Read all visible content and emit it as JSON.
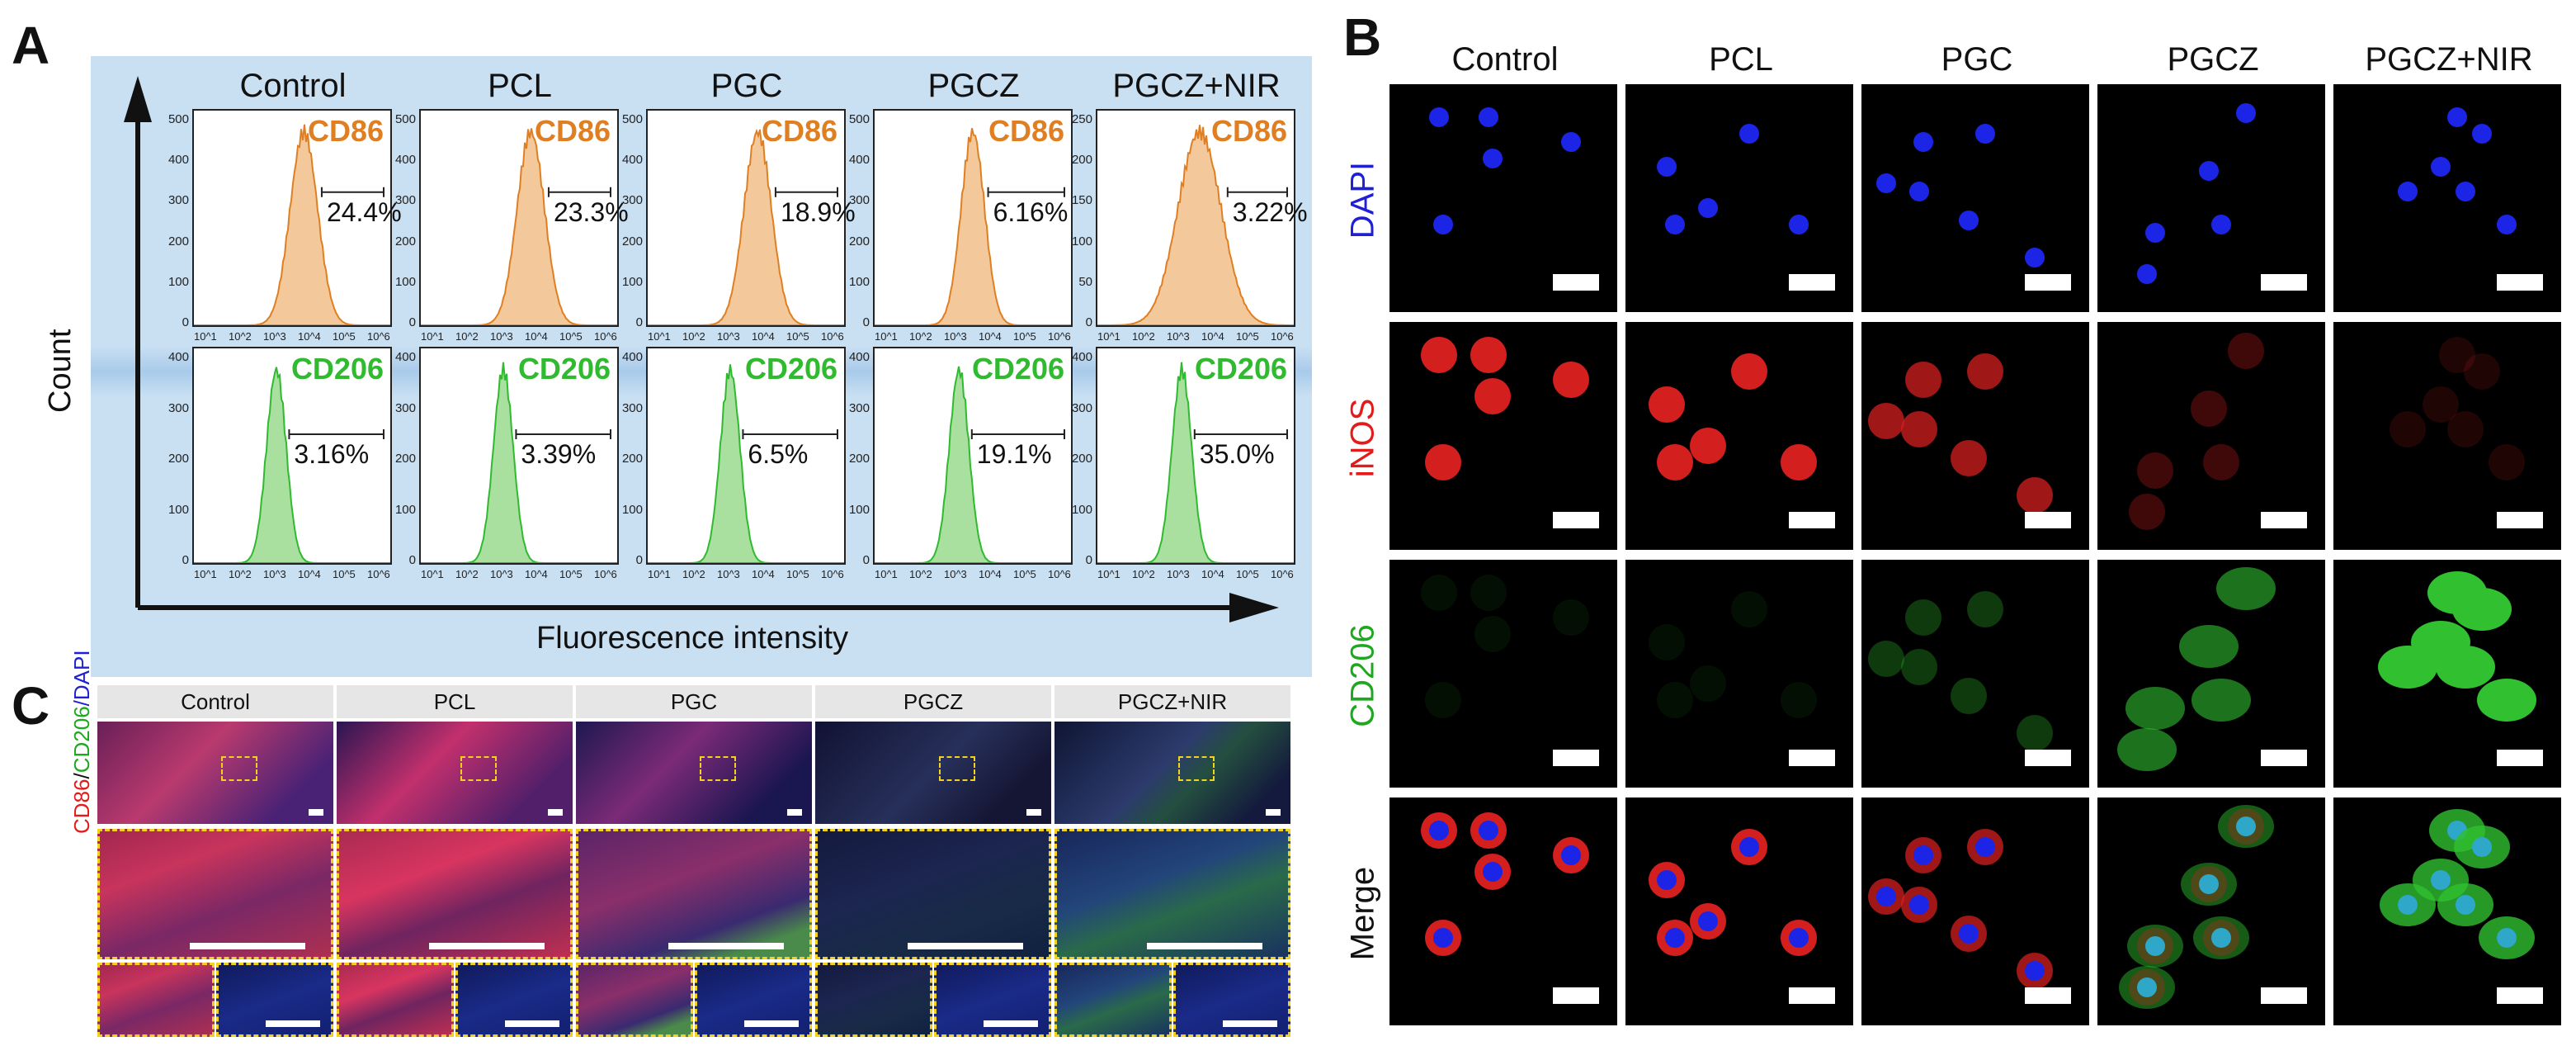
{
  "panel_letters": {
    "a": "A",
    "b": "B",
    "c": "C"
  },
  "panel_a": {
    "columns": [
      "Control",
      "PCL",
      "PGC",
      "PGCZ",
      "PGCZ+NIR"
    ],
    "y_axis_label": "Count",
    "x_axis_label": "Fluorescence intensity",
    "x_tick_labels": [
      "10^1",
      "10^2",
      "10^3",
      "10^4",
      "10^5",
      "10^6"
    ],
    "cd86": {
      "marker": "CD86",
      "color": "#e07f22",
      "percentages": [
        "24.4%",
        "23.3%",
        "18.9%",
        "6.16%",
        "3.22%"
      ],
      "y_ticks": [
        [
          "500",
          "400",
          "300",
          "200",
          "100",
          "0"
        ],
        [
          "500",
          "400",
          "300",
          "200",
          "100",
          "0"
        ],
        [
          "500",
          "400",
          "300",
          "200",
          "100",
          "0"
        ],
        [
          "500",
          "400",
          "300",
          "200",
          "100",
          "0"
        ],
        [
          "250",
          "200",
          "150",
          "100",
          "50",
          "0"
        ]
      ]
    },
    "cd206": {
      "marker": "CD206",
      "color": "#2fba2f",
      "percentages": [
        "3.16%",
        "3.39%",
        "6.5%",
        "19.1%",
        "35.0%"
      ],
      "y_ticks": [
        [
          "400",
          "300",
          "200",
          "100",
          "0"
        ],
        [
          "400",
          "300",
          "200",
          "100",
          "0"
        ],
        [
          "400",
          "300",
          "200",
          "100",
          "0"
        ],
        [
          "400",
          "300",
          "200",
          "100",
          "0"
        ],
        [
          "400",
          "300",
          "200",
          "100",
          "0"
        ]
      ]
    }
  },
  "panel_b": {
    "columns": [
      "Control",
      "PCL",
      "PGC",
      "PGCZ",
      "PGCZ+NIR"
    ],
    "rows": [
      {
        "label": "DAPI",
        "color": "#1f1fd6"
      },
      {
        "label": "iNOS",
        "color": "#e21b1b"
      },
      {
        "label": "CD206",
        "color": "#1fa81f"
      },
      {
        "label": "Merge",
        "color": "#111111"
      }
    ]
  },
  "panel_c": {
    "columns": [
      "Control",
      "PCL",
      "PGC",
      "PGCZ",
      "PGCZ+NIR"
    ],
    "y_label_parts": [
      {
        "text": "CD86",
        "color": "#e21b1b"
      },
      {
        "text": "/",
        "color": "#111111"
      },
      {
        "text": "CD206",
        "color": "#1fa81f"
      },
      {
        "text": "/DAPI",
        "color": "#1f1fd6"
      }
    ]
  }
}
